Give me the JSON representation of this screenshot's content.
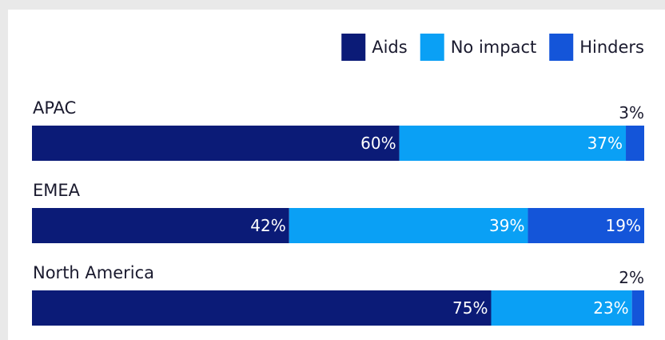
{
  "chart_data": {
    "type": "bar",
    "orientation": "horizontal",
    "stacked": true,
    "title": "",
    "categories": [
      "APAC",
      "EMEA",
      "North America"
    ],
    "series": [
      {
        "name": "Aids",
        "values": [
          60,
          42,
          75
        ],
        "labels": [
          "60%",
          "42%",
          "75%"
        ],
        "color": "#0b1b77"
      },
      {
        "name": "No impact",
        "values": [
          37,
          39,
          23
        ],
        "labels": [
          "37%",
          "39%",
          "23%"
        ],
        "color": "#0aa0f5"
      },
      {
        "name": "Hinders",
        "values": [
          3,
          19,
          2
        ],
        "labels": [
          "3%",
          "19%",
          "2%"
        ],
        "color": "#1455d9"
      }
    ],
    "xlim": [
      0,
      100
    ],
    "grid": false,
    "legend_position": "top-right"
  }
}
